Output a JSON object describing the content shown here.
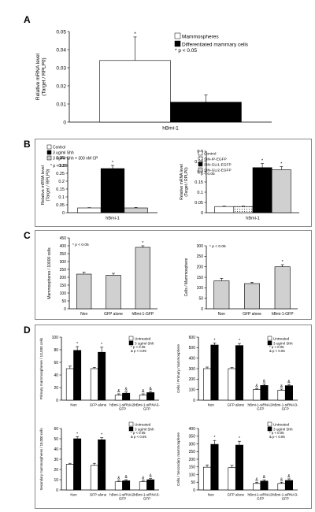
{
  "panel_labels": [
    "A",
    "B",
    "C",
    "D"
  ],
  "chart_data": [
    {
      "id": "A",
      "type": "bar",
      "categories": [
        "hBmi-1"
      ],
      "series": [
        {
          "name": "Mammospheres",
          "values": [
            0.034
          ],
          "errors": [
            0.013
          ],
          "fill": "#ffffff",
          "stars": [
            "*"
          ]
        },
        {
          "name": "Differentiated mammary cells",
          "values": [
            0.011
          ],
          "errors": [
            0.004
          ],
          "fill": "#000000",
          "stars": [
            ""
          ]
        }
      ],
      "ylabel": "Relative mRNA level\n(Target / RPLP0)",
      "yticks": [
        "0",
        "0.01",
        "0.02",
        "0.03",
        "0.04",
        "0.05"
      ],
      "ylim": [
        0,
        0.05
      ],
      "note": "* p < 0.05",
      "legend": "top-right"
    },
    {
      "id": "B1",
      "type": "bar",
      "categories": [
        "hBmi-1"
      ],
      "series": [
        {
          "name": "Control",
          "values": [
            0.03
          ],
          "errors": [
            0.002
          ],
          "fill": "#ffffff",
          "stars": [
            ""
          ]
        },
        {
          "name": "3 ug/ml Shh",
          "values": [
            0.28
          ],
          "errors": [
            0.02
          ],
          "fill": "#000000",
          "stars": [
            "*"
          ]
        },
        {
          "name": "3 ug/ml Shh + 300 nM CP",
          "values": [
            0.03
          ],
          "errors": [
            0.003
          ],
          "fill": "#d0d0d0",
          "stars": [
            ""
          ]
        }
      ],
      "ylabel": "Relative mRNA level\n(Target / RPLP0)",
      "yticks": [
        "0",
        "0.05",
        "0.1",
        "0.15",
        "0.2",
        "0.25",
        "0.3",
        "0.35"
      ],
      "ylim": [
        0,
        0.35
      ],
      "note": "* p < 0.05",
      "legend": "top-left"
    },
    {
      "id": "B2",
      "type": "bar",
      "categories": [
        "hBmi-1"
      ],
      "series": [
        {
          "name": "Control",
          "values": [
            0.03
          ],
          "errors": [
            0.002
          ],
          "fill": "#ffffff",
          "stars": [
            ""
          ]
        },
        {
          "name": "SIN-IP-EGFP",
          "values": [
            0.03
          ],
          "errors": [
            0.002
          ],
          "fill": "dots",
          "stars": [
            ""
          ]
        },
        {
          "name": "SIN-GLI1-EGFP",
          "values": [
            0.22
          ],
          "errors": [
            0.02
          ],
          "fill": "#000000",
          "stars": [
            "*"
          ]
        },
        {
          "name": "SIN-GLI2-EGFP",
          "values": [
            0.21
          ],
          "errors": [
            0.015
          ],
          "fill": "#d0d0d0",
          "stars": [
            "*"
          ]
        }
      ],
      "ylabel": "Relative mRNA level\n(Target / RPLP0)",
      "yticks": [
        "0",
        "0.05",
        "0.1",
        "0.15",
        "0.2",
        "0.25",
        "0.3"
      ],
      "ylim": [
        0,
        0.3
      ],
      "note": "* p < 0.05",
      "legend": "top-left"
    },
    {
      "id": "C1",
      "type": "bar",
      "categories": [
        "Non",
        "GFP alone",
        "hBmi-1-GFP"
      ],
      "series": [
        {
          "name": "",
          "values": [
            220,
            213,
            390
          ],
          "errors": [
            12,
            12,
            10
          ],
          "fill": "#d0d0d0",
          "stars": [
            "",
            "",
            "*"
          ]
        }
      ],
      "ylabel": "Mammospheres / 10000 cells",
      "yticks": [
        "0",
        "50",
        "100",
        "150",
        "200",
        "250",
        "300",
        "350",
        "400",
        "450"
      ],
      "ylim": [
        0,
        450
      ],
      "note": "* p < 0.05",
      "legend": "none"
    },
    {
      "id": "C2",
      "type": "bar",
      "categories": [
        "Non",
        "GFP alone",
        "hBmi-1-GFP"
      ],
      "series": [
        {
          "name": "",
          "values": [
            133,
            120,
            200
          ],
          "errors": [
            12,
            6,
            10
          ],
          "fill": "#d0d0d0",
          "stars": [
            "",
            "",
            "*"
          ]
        }
      ],
      "ylabel": "Cells / Mammosphere",
      "yticks": [
        "0",
        "50",
        "100",
        "150",
        "200",
        "250",
        "300"
      ],
      "ylim": [
        0,
        300
      ],
      "note": "* p < 0.05",
      "legend": "none"
    },
    {
      "id": "D1",
      "type": "bar",
      "categories": [
        "Non",
        "GFP alone",
        "hBmi-1-siRNA2-\nGFP",
        "hBmi-1-siRNA3-\nGFP"
      ],
      "series": [
        {
          "name": "Untreated",
          "values": [
            50,
            50,
            8,
            8
          ],
          "errors": [
            4,
            2,
            2,
            2
          ],
          "fill": "#ffffff",
          "stars": [
            "",
            "",
            "&",
            "&"
          ]
        },
        {
          "name": "3 ug/ml Shh",
          "values": [
            79,
            76,
            11,
            12
          ],
          "errors": [
            6,
            8,
            2,
            2
          ],
          "fill": "#000000",
          "stars": [
            "*",
            "*",
            "&",
            "&"
          ]
        }
      ],
      "ylabel": "Primary mammospheres / 10,000 cells",
      "yticks": [
        "0",
        "20",
        "40",
        "60",
        "80",
        "100"
      ],
      "ylim": [
        0,
        100
      ],
      "note": "* p < 0.05\n& p < 0.05",
      "legend": "top-right"
    },
    {
      "id": "D2",
      "type": "bar",
      "categories": [
        "Non",
        "GFP alone",
        "hBmi-1-siRNA2-\nGFP",
        "hBmi-1-siRNA3-\nGFP"
      ],
      "series": [
        {
          "name": "Untreated",
          "values": [
            300,
            300,
            100,
            95
          ],
          "errors": [
            15,
            10,
            10,
            10
          ],
          "fill": "#ffffff",
          "stars": [
            "",
            "",
            "&",
            "&"
          ]
        },
        {
          "name": "3 ug/ml Shh",
          "values": [
            525,
            520,
            140,
            138
          ],
          "errors": [
            20,
            20,
            15,
            12
          ],
          "fill": "#000000",
          "stars": [
            "*",
            "*",
            "&",
            "&"
          ]
        }
      ],
      "ylabel": "Cells / Primary mammosphere",
      "yticks": [
        "0",
        "100",
        "200",
        "300",
        "400",
        "500",
        "600"
      ],
      "ylim": [
        0,
        600
      ],
      "note": "* p < 0.05\n& p < 0.05",
      "legend": "top-right"
    },
    {
      "id": "D3",
      "type": "bar",
      "categories": [
        "Non",
        "GFP alone",
        "hBmi-1-siRNA2-\nGFP",
        "hBmi-1-siRNA3-\nGFP"
      ],
      "series": [
        {
          "name": "Untreated",
          "values": [
            25,
            24,
            8,
            8
          ],
          "errors": [
            1,
            2,
            1,
            1
          ],
          "fill": "#ffffff",
          "stars": [
            "",
            "",
            "&",
            "&"
          ]
        },
        {
          "name": "3 ug/ml Shh",
          "values": [
            50,
            49,
            9,
            10
          ],
          "errors": [
            2,
            2,
            1,
            1
          ],
          "fill": "#000000",
          "stars": [
            "*",
            "*",
            "&",
            "&"
          ]
        }
      ],
      "ylabel": "Secondary mammospheres / 10,000 cells",
      "yticks": [
        "0",
        "10",
        "20",
        "30",
        "40",
        "50",
        "60"
      ],
      "ylim": [
        0,
        60
      ],
      "note": "* p < 0.05\n& p < 0.05",
      "legend": "top-right"
    },
    {
      "id": "D4",
      "type": "bar",
      "categories": [
        "Non",
        "GFP alone",
        "hBmi-1-siRNA2-\nGFP",
        "hBmi-1-siRNA3-\nGFP"
      ],
      "series": [
        {
          "name": "Untreated",
          "values": [
            148,
            145,
            42,
            42
          ],
          "errors": [
            15,
            15,
            8,
            8
          ],
          "fill": "#ffffff",
          "stars": [
            "",
            "",
            "&",
            "&"
          ]
        },
        {
          "name": "3 ug/ml Shh",
          "values": [
            297,
            292,
            58,
            62
          ],
          "errors": [
            25,
            25,
            8,
            10
          ],
          "fill": "#000000",
          "stars": [
            "*",
            "*",
            "&",
            "&"
          ]
        }
      ],
      "ylabel": "Cells / Secondary mammosphere",
      "yticks": [
        "0",
        "50",
        "100",
        "150",
        "200",
        "250",
        "300",
        "350",
        "400"
      ],
      "ylim": [
        0,
        400
      ],
      "note": "* p < 0.05\n& p < 0.05",
      "legend": "top-right"
    }
  ]
}
